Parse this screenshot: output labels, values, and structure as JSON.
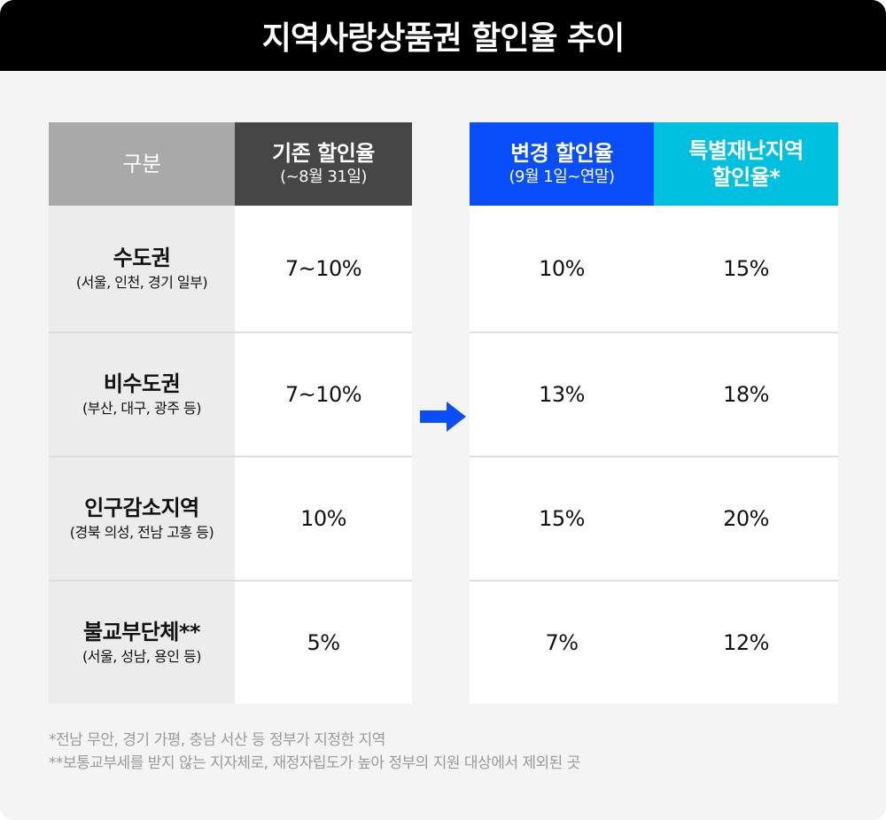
{
  "title": "지역사랑상품권 할인율 추이",
  "headers": {
    "category": "구분",
    "existing": {
      "main": "기존 할인율",
      "sub": "(~8월 31일)"
    },
    "changed": {
      "main": "변경 할인율",
      "sub": "(9월 1일~연말)"
    },
    "special": {
      "main": "특별재난지역",
      "sub": "할인율*"
    }
  },
  "colors": {
    "title_bg": "#000000",
    "category_header": "#a9a9a9",
    "existing_header": "#464646",
    "changed_header": "#0a4dfa",
    "special_header": "#00c0e0",
    "arrow": "#0a4dfa"
  },
  "rows": [
    {
      "name": "수도권",
      "desc": "(서울, 인천, 경기 일부)",
      "existing": "7~10%",
      "changed": "10%",
      "special": "15%"
    },
    {
      "name": "비수도권",
      "desc": "(부산, 대구, 광주 등)",
      "existing": "7~10%",
      "changed": "13%",
      "special": "18%"
    },
    {
      "name": "인구감소지역",
      "desc": "(경북 의성, 전남 고흥 등)",
      "existing": "10%",
      "changed": "15%",
      "special": "20%"
    },
    {
      "name": "불교부단체**",
      "desc": "(서울, 성남, 용인 등)",
      "existing": "5%",
      "changed": "7%",
      "special": "12%"
    }
  ],
  "notes": [
    "*전남 무안, 경기 가평, 충남 서산 등 정부가 지정한 지역",
    "**보통교부세를 받지 않는 지자체로, 재정자립도가 높아 정부의 지원 대상에서 제외된 곳"
  ],
  "icons": {
    "arrow": "arrow-right-icon"
  }
}
